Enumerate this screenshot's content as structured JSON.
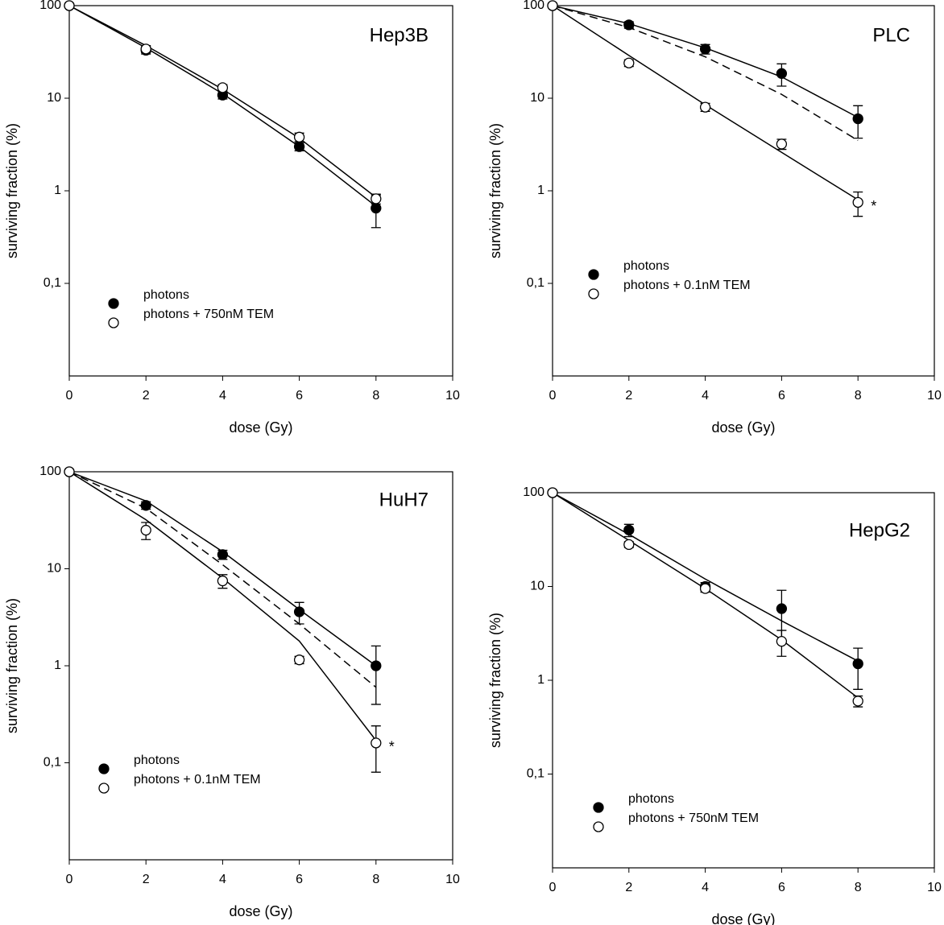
{
  "chart_data": [
    {
      "type": "scatter",
      "title": "Hep3B",
      "x_label": "dose (Gy)",
      "y_label": "surviving fraction (%)",
      "log_y": true,
      "xlim": [
        0,
        10
      ],
      "xticks": [
        0,
        2,
        4,
        6,
        8,
        10
      ],
      "ylim": [
        0.01,
        100
      ],
      "yticks": [
        {
          "value": 0.1,
          "label": "0,1"
        },
        1,
        10,
        100
      ],
      "legend": "lower left",
      "series": [
        {
          "name": "photons",
          "color": "#000000",
          "marker": "filled",
          "x": [
            0,
            2,
            4,
            6,
            8
          ],
          "values": [
            100,
            33,
            10.8,
            3.0,
            0.65
          ],
          "errors": [
            0,
            3,
            1,
            0.3,
            0.25
          ]
        },
        {
          "name": "photons + 750nM TEM",
          "color": "#000000",
          "marker": "open",
          "x": [
            0,
            2,
            4,
            6,
            8
          ],
          "values": [
            100,
            34,
            13,
            3.8,
            0.82
          ],
          "errors": [
            0,
            3,
            1,
            0.4,
            0.1
          ]
        }
      ],
      "fits": [
        {
          "dashed": false,
          "x": [
            0,
            2,
            4,
            6,
            8
          ],
          "values": [
            100,
            35,
            11.2,
            3.0,
            0.68
          ]
        },
        {
          "dashed": false,
          "x": [
            0,
            2,
            4,
            6,
            8
          ],
          "values": [
            100,
            37,
            12.5,
            3.7,
            0.85
          ]
        }
      ]
    },
    {
      "type": "scatter",
      "title": "PLC",
      "x_label": "dose (Gy)",
      "y_label": "surviving fraction (%)",
      "log_y": true,
      "xlim": [
        0,
        10
      ],
      "xticks": [
        0,
        2,
        4,
        6,
        8,
        10
      ],
      "ylim": [
        0.01,
        100
      ],
      "yticks": [
        {
          "value": 0.1,
          "label": "0,1"
        },
        1,
        10,
        100
      ],
      "legend": "lower left",
      "series": [
        {
          "name": "photons",
          "color": "#000000",
          "marker": "filled",
          "x": [
            0,
            2,
            4,
            6,
            8
          ],
          "values": [
            100,
            62,
            34,
            18.5,
            6.0
          ],
          "errors": [
            0,
            5,
            4,
            5,
            2.3
          ]
        },
        {
          "name": "photons +  0.1nM TEM",
          "color": "#000000",
          "marker": "open",
          "x": [
            0,
            2,
            4,
            6,
            8
          ],
          "values": [
            100,
            24,
            8,
            3.2,
            0.75
          ],
          "errors": [
            0,
            2,
            0.8,
            0.4,
            0.22
          ]
        }
      ],
      "fits": [
        {
          "dashed": false,
          "x": [
            0,
            2,
            4,
            6,
            8
          ],
          "values": [
            100,
            64,
            35,
            17,
            6.2
          ]
        },
        {
          "dashed": false,
          "x": [
            0,
            2,
            4,
            6,
            8
          ],
          "values": [
            100,
            29,
            8.5,
            2.6,
            0.8
          ]
        },
        {
          "dashed": true,
          "x": [
            0,
            2,
            4,
            6,
            8
          ],
          "values": [
            100,
            58,
            28,
            11,
            3.5
          ]
        }
      ],
      "annotation": "*"
    },
    {
      "type": "scatter",
      "title": "HuH7",
      "x_label": "dose (Gy)",
      "y_label": "surviving fraction (%)",
      "log_y": true,
      "xlim": [
        0,
        10
      ],
      "xticks": [
        0,
        2,
        4,
        6,
        8,
        10
      ],
      "ylim": [
        0.01,
        100
      ],
      "yticks": [
        {
          "value": 0.1,
          "label": "0,1"
        },
        1,
        10,
        100
      ],
      "legend": "lower left",
      "series": [
        {
          "name": "photons",
          "color": "#000000",
          "marker": "filled",
          "x": [
            0,
            2,
            4,
            6,
            8
          ],
          "values": [
            100,
            45,
            14,
            3.6,
            1.0
          ],
          "errors": [
            0,
            4,
            1.5,
            0.9,
            0.6
          ]
        },
        {
          "name": "photons +  0.1nM TEM",
          "color": "#000000",
          "marker": "open",
          "x": [
            0,
            2,
            4,
            6,
            8
          ],
          "values": [
            100,
            25,
            7.5,
            1.15,
            0.16
          ],
          "errors": [
            0,
            5,
            1.2,
            0.1,
            0.08
          ]
        }
      ],
      "fits": [
        {
          "dashed": false,
          "x": [
            0,
            2,
            4,
            6,
            8
          ],
          "values": [
            100,
            50,
            15,
            3.8,
            1.0
          ]
        },
        {
          "dashed": false,
          "x": [
            0,
            2,
            4,
            6,
            8
          ],
          "values": [
            100,
            32,
            8,
            1.8,
            0.17
          ]
        },
        {
          "dashed": true,
          "x": [
            0,
            2,
            4,
            6,
            8
          ],
          "values": [
            100,
            42,
            11,
            2.7,
            0.6
          ]
        }
      ],
      "annotation": "*"
    },
    {
      "type": "scatter",
      "title": "HepG2",
      "x_label": "dose (Gy)",
      "y_label": "surviving fraction (%)",
      "log_y": true,
      "xlim": [
        0,
        10
      ],
      "xticks": [
        0,
        2,
        4,
        6,
        8,
        10
      ],
      "ylim": [
        0.01,
        100
      ],
      "yticks": [
        {
          "value": 0.1,
          "label": "0,1"
        },
        1,
        10,
        100
      ],
      "legend": "lower left",
      "series": [
        {
          "name": "photons",
          "color": "#000000",
          "marker": "filled",
          "x": [
            0,
            2,
            4,
            6,
            8
          ],
          "values": [
            100,
            40,
            10,
            5.8,
            1.5
          ],
          "errors": [
            0,
            6,
            1,
            3.3,
            0.7
          ]
        },
        {
          "name": "photons + 750nM TEM",
          "color": "#000000",
          "marker": "open",
          "x": [
            0,
            2,
            4,
            6,
            8
          ],
          "values": [
            100,
            28,
            9.5,
            2.6,
            0.6
          ],
          "errors": [
            0,
            2,
            0.8,
            0.8,
            0.08
          ]
        }
      ],
      "fits": [
        {
          "dashed": false,
          "x": [
            0,
            2,
            4,
            6,
            8
          ],
          "values": [
            100,
            36,
            12,
            4.3,
            1.6
          ]
        },
        {
          "dashed": false,
          "x": [
            0,
            2,
            4,
            6,
            8
          ],
          "values": [
            100,
            31,
            9.5,
            2.7,
            0.65
          ]
        }
      ]
    }
  ]
}
